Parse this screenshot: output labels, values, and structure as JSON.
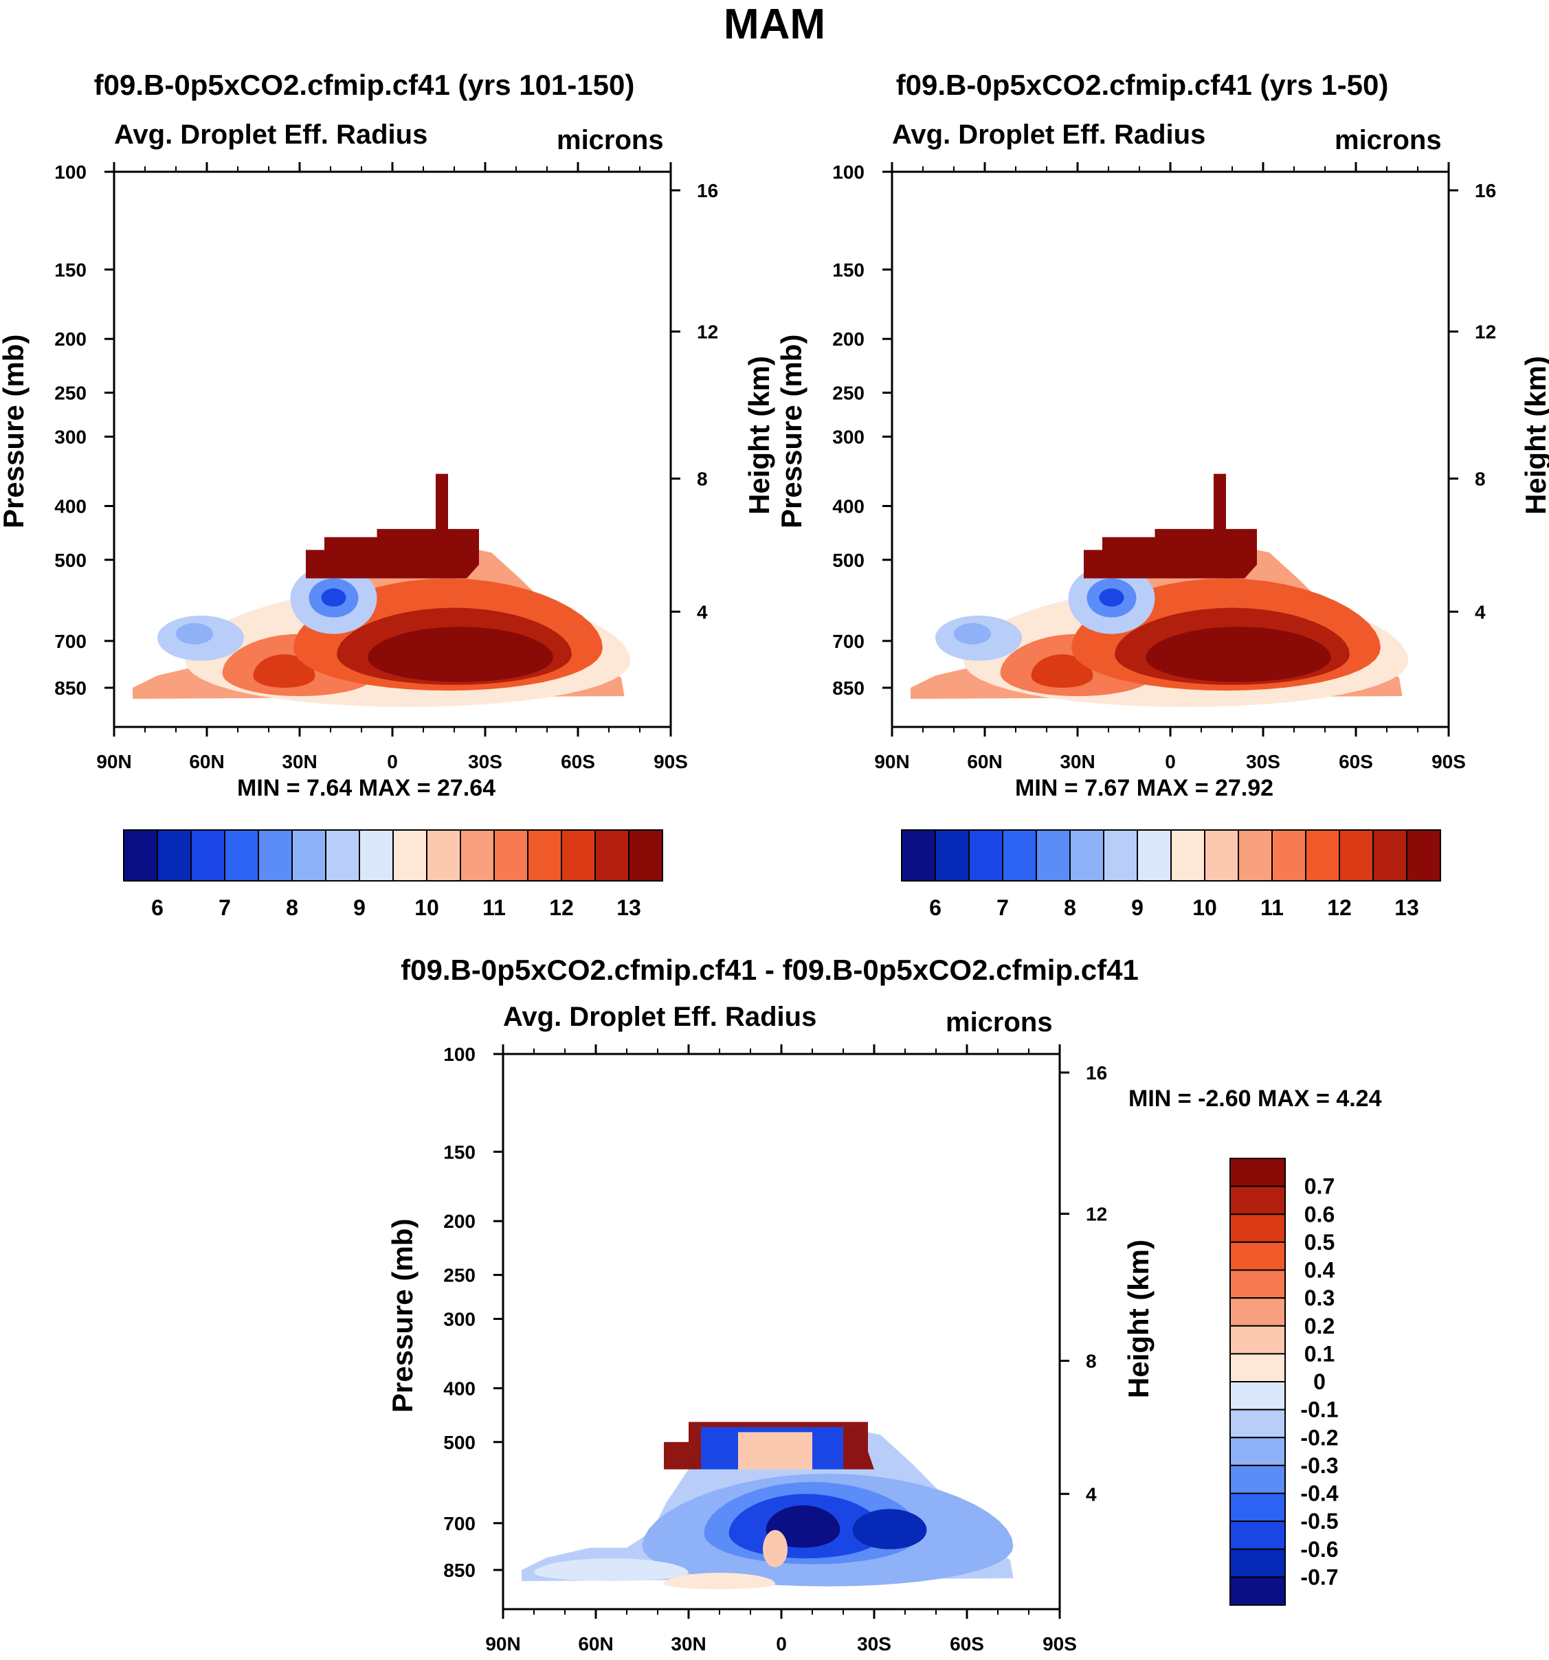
{
  "figure": {
    "season_title": "MAM"
  },
  "chart_data": [
    {
      "type": "heatmap",
      "panel": "top-left",
      "title": "f09.B-0p5xCO2.cfmip.cf41 (yrs 101-150)",
      "left_string": "Avg. Droplet Eff. Radius",
      "right_string": "microns",
      "ylabel": "Pressure (mb)",
      "ylabel_right": "Height (km)",
      "x_ticks": [
        "90N",
        "60N",
        "30N",
        "0",
        "30S",
        "60S",
        "90S"
      ],
      "y_ticks": [
        "100",
        "150",
        "200",
        "250",
        "300",
        "400",
        "500",
        "700",
        "850"
      ],
      "y_ticks_right": [
        "16",
        "12",
        "8",
        "4"
      ],
      "min_label": "MIN =   7.64  MAX =  27.64",
      "min": 7.64,
      "max": 27.64,
      "colorbar_ticks": [
        "6",
        "7",
        "8",
        "9",
        "10",
        "11",
        "12",
        "13"
      ],
      "colorbar_levels": [
        5.5,
        6,
        6.5,
        7,
        7.5,
        8,
        8.5,
        9,
        9.5,
        10,
        10.5,
        11,
        11.5,
        12,
        12.5,
        13,
        13.5
      ],
      "colors": [
        "#0a0f85",
        "#0629b8",
        "#1a46e6",
        "#2d63f2",
        "#5c8cf7",
        "#8fb1f7",
        "#b8cef9",
        "#dbe8fb",
        "#fde7d6",
        "#fcc9b0",
        "#f9a07e",
        "#f67a52",
        "#f05a2a",
        "#da3a14",
        "#b21f0c",
        "#8a0a07"
      ]
    },
    {
      "type": "heatmap",
      "panel": "top-right",
      "title": "f09.B-0p5xCO2.cfmip.cf41 (yrs 1-50)",
      "left_string": "Avg. Droplet Eff. Radius",
      "right_string": "microns",
      "ylabel": "Pressure (mb)",
      "ylabel_right": "Height (km)",
      "x_ticks": [
        "90N",
        "60N",
        "30N",
        "0",
        "30S",
        "60S",
        "90S"
      ],
      "y_ticks": [
        "100",
        "150",
        "200",
        "250",
        "300",
        "400",
        "500",
        "700",
        "850"
      ],
      "y_ticks_right": [
        "16",
        "12",
        "8",
        "4"
      ],
      "min_label": "MIN =   7.67  MAX =  27.92",
      "min": 7.67,
      "max": 27.92,
      "colorbar_ticks": [
        "6",
        "7",
        "8",
        "9",
        "10",
        "11",
        "12",
        "13"
      ],
      "colorbar_levels": [
        5.5,
        6,
        6.5,
        7,
        7.5,
        8,
        8.5,
        9,
        9.5,
        10,
        10.5,
        11,
        11.5,
        12,
        12.5,
        13,
        13.5
      ],
      "colors": [
        "#0a0f85",
        "#0629b8",
        "#1a46e6",
        "#2d63f2",
        "#5c8cf7",
        "#8fb1f7",
        "#b8cef9",
        "#dbe8fb",
        "#fde7d6",
        "#fcc9b0",
        "#f9a07e",
        "#f67a52",
        "#f05a2a",
        "#da3a14",
        "#b21f0c",
        "#8a0a07"
      ]
    },
    {
      "type": "heatmap",
      "panel": "bottom",
      "title": "f09.B-0p5xCO2.cfmip.cf41 - f09.B-0p5xCO2.cfmip.cf41",
      "left_string": "Avg. Droplet Eff. Radius",
      "right_string": "microns",
      "ylabel": "Pressure (mb)",
      "ylabel_right": "Height (km)",
      "x_ticks": [
        "90N",
        "60N",
        "30N",
        "0",
        "30S",
        "60S",
        "90S"
      ],
      "y_ticks": [
        "100",
        "150",
        "200",
        "250",
        "300",
        "400",
        "500",
        "700",
        "850"
      ],
      "y_ticks_right": [
        "16",
        "12",
        "8",
        "4"
      ],
      "min_label": "MIN =  -2.60  MAX =   4.24",
      "min": -2.6,
      "max": 4.24,
      "colorbar_ticks": [
        "0.7",
        "0.6",
        "0.5",
        "0.4",
        "0.3",
        "0.2",
        "0.1",
        "0",
        "-0.1",
        "-0.2",
        "-0.3",
        "-0.4",
        "-0.5",
        "-0.6",
        "-0.7"
      ],
      "colors": [
        "#8a0a07",
        "#b21f0c",
        "#da3a14",
        "#f05a2a",
        "#f67a52",
        "#f9a07e",
        "#fcc9b0",
        "#fde7d6",
        "#dbe8fb",
        "#b8cef9",
        "#8fb1f7",
        "#5c8cf7",
        "#2d63f2",
        "#1a46e6",
        "#0629b8",
        "#0a0f85"
      ]
    }
  ]
}
